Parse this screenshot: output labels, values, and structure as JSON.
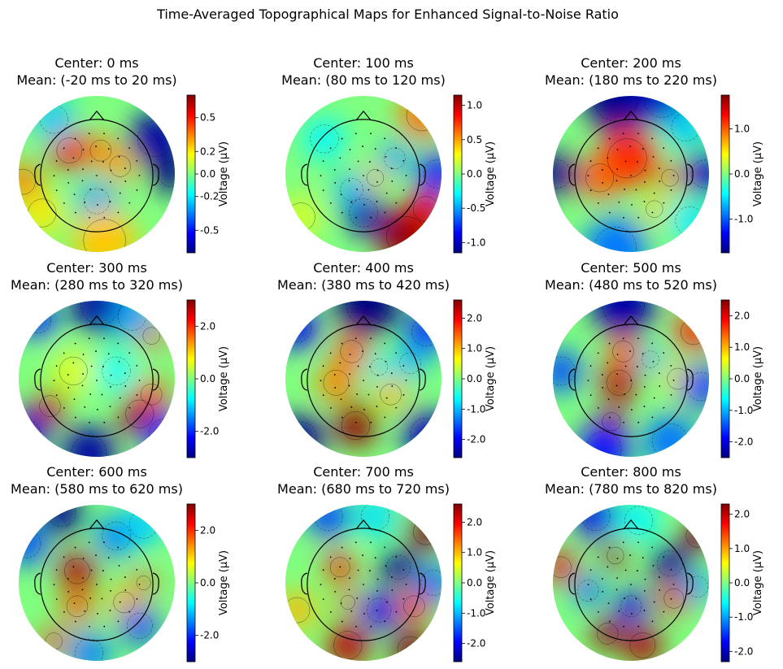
{
  "figure": {
    "title": "Time-Averaged Topographical Maps for Enhanced Signal-to-Noise Ratio"
  },
  "chart_data": {
    "type": "heatmap",
    "subtype": "eeg-topomap-grid",
    "layout": {
      "rows": 3,
      "cols": 3
    },
    "colormap": "jet",
    "colorbar_label": "Voltage (µV)",
    "panels": [
      {
        "title_line1": "Center: 0 ms",
        "title_line2": "Mean: (-20 ms to 20 ms)",
        "vmin": -0.7,
        "vmax": 0.7,
        "ticks": [
          0.5,
          0.2,
          0.0,
          -0.2,
          -0.5
        ],
        "tick_labels": [
          "0.5",
          "0.2",
          "0.0",
          "-0.2",
          "-0.5"
        ],
        "blobs": [
          {
            "x": -0.35,
            "y": 0.3,
            "v": 0.55,
            "r": 0.18
          },
          {
            "x": 0.05,
            "y": 0.3,
            "v": 0.35,
            "r": 0.15
          },
          {
            "x": 0.3,
            "y": 0.1,
            "v": 0.3,
            "r": 0.15
          },
          {
            "x": -0.95,
            "y": -0.1,
            "v": 0.35,
            "r": 0.18
          },
          {
            "x": 0.75,
            "y": 0.45,
            "v": -0.65,
            "r": 0.25
          },
          {
            "x": 0.95,
            "y": 0.0,
            "v": -0.7,
            "r": 0.18
          },
          {
            "x": -0.55,
            "y": 0.7,
            "v": -0.25,
            "r": 0.2
          },
          {
            "x": 0.0,
            "y": -0.35,
            "v": -0.3,
            "r": 0.18
          },
          {
            "x": -0.7,
            "y": -0.5,
            "v": 0.2,
            "r": 0.2
          },
          {
            "x": 0.1,
            "y": -0.85,
            "v": 0.25,
            "r": 0.3
          }
        ]
      },
      {
        "title_line1": "Center: 100 ms",
        "title_line2": "Mean: (80 ms to 120 ms)",
        "vmin": -1.15,
        "vmax": 1.15,
        "ticks": [
          1.0,
          0.5,
          0.0,
          -0.5,
          -1.0
        ],
        "tick_labels": [
          "1.0",
          "0.5",
          "0.0",
          "-0.5",
          "-1.0"
        ],
        "blobs": [
          {
            "x": 0.55,
            "y": -0.8,
            "v": 1.1,
            "r": 0.28
          },
          {
            "x": 0.8,
            "y": -0.45,
            "v": 0.9,
            "r": 0.18
          },
          {
            "x": 0.75,
            "y": 0.75,
            "v": 0.6,
            "r": 0.22
          },
          {
            "x": 0.15,
            "y": -0.05,
            "v": 0.4,
            "r": 0.12
          },
          {
            "x": 0.0,
            "y": -0.5,
            "v": -1.05,
            "r": 0.2
          },
          {
            "x": -0.15,
            "y": -0.2,
            "v": -0.45,
            "r": 0.16
          },
          {
            "x": 0.4,
            "y": 0.2,
            "v": -0.5,
            "r": 0.15
          },
          {
            "x": -0.5,
            "y": 0.45,
            "v": -0.3,
            "r": 0.2
          },
          {
            "x": 0.95,
            "y": 0.0,
            "v": -0.8,
            "r": 0.2
          },
          {
            "x": -0.8,
            "y": -0.55,
            "v": 0.2,
            "r": 0.2
          }
        ]
      },
      {
        "title_line1": "Center: 200 ms",
        "title_line2": "Mean: (180 ms to 220 ms)",
        "vmin": -1.75,
        "vmax": 1.75,
        "ticks": [
          1.0,
          0.0,
          -1.0
        ],
        "tick_labels": [
          "1.0",
          "0.0",
          "-1.0"
        ],
        "blobs": [
          {
            "x": -0.05,
            "y": 0.2,
            "v": 1.2,
            "r": 0.28
          },
          {
            "x": -0.4,
            "y": -0.05,
            "v": 1.0,
            "r": 0.2
          },
          {
            "x": 0.5,
            "y": -0.05,
            "v": 0.9,
            "r": 0.12
          },
          {
            "x": 0.3,
            "y": -0.45,
            "v": 0.6,
            "r": 0.12
          },
          {
            "x": -0.2,
            "y": 0.95,
            "v": -1.7,
            "r": 0.3
          },
          {
            "x": 0.4,
            "y": 0.95,
            "v": -1.5,
            "r": 0.25
          },
          {
            "x": -0.95,
            "y": 0.0,
            "v": -1.7,
            "r": 0.2
          },
          {
            "x": 0.95,
            "y": 0.0,
            "v": -1.5,
            "r": 0.2
          },
          {
            "x": 0.7,
            "y": 0.6,
            "v": -0.6,
            "r": 0.2
          },
          {
            "x": -0.2,
            "y": -0.95,
            "v": -0.9,
            "r": 0.3
          },
          {
            "x": 0.75,
            "y": -0.6,
            "v": -0.5,
            "r": 0.2
          }
        ]
      },
      {
        "title_line1": "Center: 300 ms",
        "title_line2": "Mean: (280 ms to 320 ms)",
        "vmin": -3.0,
        "vmax": 3.0,
        "ticks": [
          2.0,
          0.0,
          -2.0
        ],
        "tick_labels": [
          "2.0",
          "0.0",
          "-2.0"
        ],
        "blobs": [
          {
            "x": -0.6,
            "y": -0.35,
            "v": 2.6,
            "r": 0.15
          },
          {
            "x": 0.55,
            "y": -0.45,
            "v": 2.8,
            "r": 0.2
          },
          {
            "x": 0.7,
            "y": -0.2,
            "v": 1.8,
            "r": 0.15
          },
          {
            "x": 0.7,
            "y": 0.55,
            "v": 1.8,
            "r": 0.12
          },
          {
            "x": -0.3,
            "y": 0.1,
            "v": 0.6,
            "r": 0.2
          },
          {
            "x": 0.05,
            "y": 0.95,
            "v": -2.8,
            "r": 0.28
          },
          {
            "x": -0.75,
            "y": 0.75,
            "v": -2.0,
            "r": 0.18
          },
          {
            "x": 0.45,
            "y": 0.8,
            "v": -1.3,
            "r": 0.2
          },
          {
            "x": -0.9,
            "y": -0.7,
            "v": -2.5,
            "r": 0.2
          },
          {
            "x": -0.1,
            "y": -0.95,
            "v": -2.8,
            "r": 0.25
          },
          {
            "x": 0.85,
            "y": -0.7,
            "v": -2.0,
            "r": 0.2
          },
          {
            "x": 0.25,
            "y": 0.1,
            "v": -0.7,
            "r": 0.2
          }
        ]
      },
      {
        "title_line1": "Center: 400 ms",
        "title_line2": "Mean: (380 ms to 420 ms)",
        "vmin": -2.6,
        "vmax": 2.6,
        "ticks": [
          2.0,
          1.0,
          0.0,
          -1.0,
          -2.0
        ],
        "tick_labels": [
          "2.0",
          "1.0",
          "0.0",
          "-1.0",
          "-2.0"
        ],
        "blobs": [
          {
            "x": -0.1,
            "y": -0.6,
            "v": 2.5,
            "r": 0.2
          },
          {
            "x": -0.15,
            "y": 0.35,
            "v": 1.5,
            "r": 0.16
          },
          {
            "x": -0.35,
            "y": -0.05,
            "v": 1.3,
            "r": 0.18
          },
          {
            "x": 0.35,
            "y": -0.2,
            "v": 1.0,
            "r": 0.15
          },
          {
            "x": 0.05,
            "y": 0.95,
            "v": -2.6,
            "r": 0.3
          },
          {
            "x": -0.85,
            "y": 0.65,
            "v": -2.0,
            "r": 0.2
          },
          {
            "x": 0.8,
            "y": 0.6,
            "v": -1.8,
            "r": 0.2
          },
          {
            "x": -0.8,
            "y": -0.75,
            "v": -2.5,
            "r": 0.22
          },
          {
            "x": 0.8,
            "y": -0.7,
            "v": -2.3,
            "r": 0.22
          },
          {
            "x": 0.6,
            "y": 0.2,
            "v": -1.0,
            "r": 0.15
          },
          {
            "x": 0.2,
            "y": 0.15,
            "v": -0.8,
            "r": 0.12
          }
        ]
      },
      {
        "title_line1": "Center: 500 ms",
        "title_line2": "Mean: (480 ms to 520 ms)",
        "vmin": -2.5,
        "vmax": 2.5,
        "ticks": [
          2.0,
          1.0,
          0.0,
          -1.0,
          -2.0
        ],
        "tick_labels": [
          "2.0",
          "1.0",
          "0.0",
          "-1.0",
          "-2.0"
        ],
        "blobs": [
          {
            "x": -0.15,
            "y": -0.05,
            "v": 2.2,
            "r": 0.18
          },
          {
            "x": -0.25,
            "y": -0.55,
            "v": 2.3,
            "r": 0.13
          },
          {
            "x": -0.1,
            "y": 0.35,
            "v": 1.4,
            "r": 0.15
          },
          {
            "x": 0.8,
            "y": 0.6,
            "v": 1.7,
            "r": 0.18
          },
          {
            "x": 0.6,
            "y": 0.0,
            "v": 0.8,
            "r": 0.15
          },
          {
            "x": -0.1,
            "y": 0.95,
            "v": -2.3,
            "r": 0.3
          },
          {
            "x": -0.9,
            "y": 0.1,
            "v": -1.5,
            "r": 0.2
          },
          {
            "x": 0.9,
            "y": -0.1,
            "v": -1.6,
            "r": 0.2
          },
          {
            "x": -0.35,
            "y": -0.9,
            "v": -1.8,
            "r": 0.25
          },
          {
            "x": 0.5,
            "y": -0.8,
            "v": -1.3,
            "r": 0.25
          },
          {
            "x": 0.25,
            "y": 0.25,
            "v": -1.0,
            "r": 0.12
          }
        ]
      },
      {
        "title_line1": "Center: 600 ms",
        "title_line2": "Mean: (580 ms to 620 ms)",
        "vmin": -3.0,
        "vmax": 3.0,
        "ticks": [
          2.0,
          0.0,
          -2.0
        ],
        "tick_labels": [
          "2.0",
          "0.0",
          "-2.0"
        ],
        "blobs": [
          {
            "x": -0.25,
            "y": 0.15,
            "v": 2.7,
            "r": 0.18
          },
          {
            "x": -0.25,
            "y": -0.3,
            "v": 1.7,
            "r": 0.15
          },
          {
            "x": -0.55,
            "y": -0.75,
            "v": 2.0,
            "r": 0.12
          },
          {
            "x": 0.35,
            "y": -0.25,
            "v": 1.2,
            "r": 0.15
          },
          {
            "x": 0.6,
            "y": 0.0,
            "v": 2.0,
            "r": 0.1
          },
          {
            "x": -0.45,
            "y": 0.9,
            "v": -2.9,
            "r": 0.2
          },
          {
            "x": 0.25,
            "y": 0.6,
            "v": -1.5,
            "r": 0.2
          },
          {
            "x": -0.9,
            "y": 0.5,
            "v": -1.8,
            "r": 0.2
          },
          {
            "x": 0.55,
            "y": -0.55,
            "v": -1.8,
            "r": 0.18
          },
          {
            "x": -0.1,
            "y": -0.9,
            "v": -1.5,
            "r": 0.2
          },
          {
            "x": 0.6,
            "y": 0.75,
            "v": -1.0,
            "r": 0.2
          }
        ]
      },
      {
        "title_line1": "Center: 700 ms",
        "title_line2": "Mean: (680 ms to 720 ms)",
        "vmin": -2.6,
        "vmax": 2.6,
        "ticks": [
          2.0,
          1.0,
          0.0,
          -1.0,
          -2.0
        ],
        "tick_labels": [
          "2.0",
          "1.0",
          "0.0",
          "-1.0",
          "-2.0"
        ],
        "blobs": [
          {
            "x": 0.8,
            "y": 0.65,
            "v": 2.6,
            "r": 0.18
          },
          {
            "x": 0.6,
            "y": -0.85,
            "v": 2.6,
            "r": 0.18
          },
          {
            "x": -0.2,
            "y": -0.8,
            "v": 2.3,
            "r": 0.2
          },
          {
            "x": 0.65,
            "y": -0.3,
            "v": 1.8,
            "r": 0.15
          },
          {
            "x": -0.3,
            "y": 0.2,
            "v": 1.8,
            "r": 0.14
          },
          {
            "x": -0.2,
            "y": -0.25,
            "v": 1.5,
            "r": 0.1
          },
          {
            "x": -0.85,
            "y": -0.35,
            "v": 1.0,
            "r": 0.18
          },
          {
            "x": 0.45,
            "y": 0.2,
            "v": -2.5,
            "r": 0.17
          },
          {
            "x": 0.2,
            "y": -0.35,
            "v": -2.0,
            "r": 0.17
          },
          {
            "x": -0.45,
            "y": 0.85,
            "v": -1.6,
            "r": 0.2
          },
          {
            "x": 0.9,
            "y": 0.0,
            "v": -1.4,
            "r": 0.18
          },
          {
            "x": 0.15,
            "y": 0.85,
            "v": -0.8,
            "r": 0.2
          }
        ]
      },
      {
        "title_line1": "Center: 800 ms",
        "title_line2": "Mean: (780 ms to 820 ms)",
        "vmin": -2.3,
        "vmax": 2.3,
        "ticks": [
          2.0,
          1.0,
          0.0,
          -1.0,
          -2.0
        ],
        "tick_labels": [
          "2.0",
          "1.0",
          "0.0",
          "-1.0",
          "-2.0"
        ],
        "blobs": [
          {
            "x": 0.85,
            "y": 0.6,
            "v": 2.3,
            "r": 0.16
          },
          {
            "x": -0.2,
            "y": 0.35,
            "v": 2.2,
            "r": 0.12
          },
          {
            "x": -0.3,
            "y": -0.65,
            "v": 2.2,
            "r": 0.15
          },
          {
            "x": 0.15,
            "y": -0.8,
            "v": 2.1,
            "r": 0.18
          },
          {
            "x": 0.55,
            "y": -0.2,
            "v": 1.8,
            "r": 0.14
          },
          {
            "x": -0.9,
            "y": 0.2,
            "v": 1.8,
            "r": 0.15
          },
          {
            "x": 0.5,
            "y": 0.25,
            "v": -2.2,
            "r": 0.18
          },
          {
            "x": 0.0,
            "y": -0.3,
            "v": -1.8,
            "r": 0.15
          },
          {
            "x": -0.45,
            "y": 0.85,
            "v": -1.8,
            "r": 0.2
          },
          {
            "x": -0.55,
            "y": -0.1,
            "v": -1.2,
            "r": 0.15
          },
          {
            "x": 0.85,
            "y": -0.05,
            "v": -1.0,
            "r": 0.15
          },
          {
            "x": 0.1,
            "y": 0.8,
            "v": -0.6,
            "r": 0.2
          }
        ]
      }
    ]
  }
}
